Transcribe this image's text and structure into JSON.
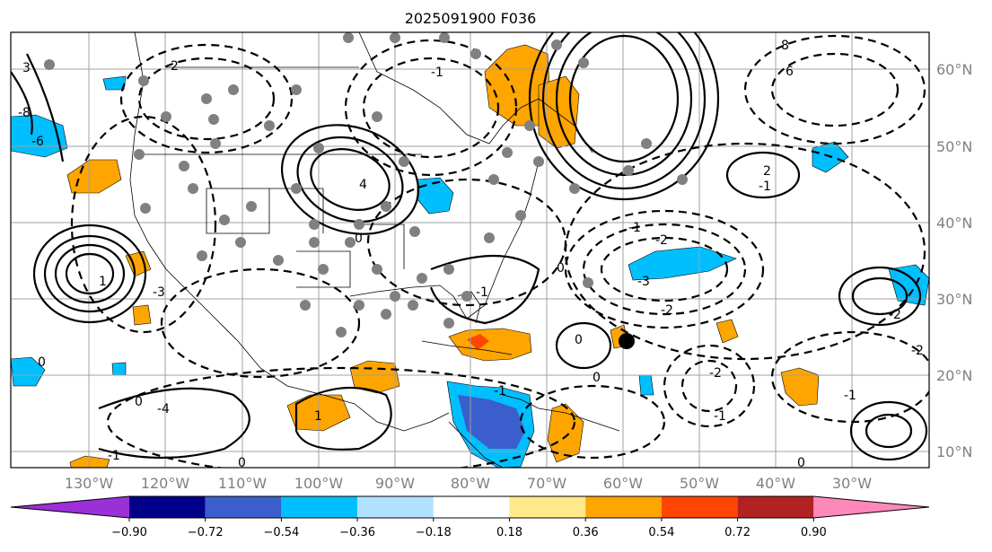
{
  "map": {
    "title": "2025091900 F036",
    "lon_labels": [
      "130°W",
      "120°W",
      "110°W",
      "100°W",
      "90°W",
      "80°W",
      "70°W",
      "60°W",
      "50°W",
      "40°W",
      "30°W"
    ],
    "lat_labels": [
      "60°N",
      "50°N",
      "40°N",
      "30°N",
      "20°N",
      "10°N"
    ],
    "contour_labels": [
      "3",
      "2",
      "1",
      "-1",
      "-3",
      "4",
      "-4",
      "6",
      "8",
      "-8",
      "-6",
      "-2",
      "0",
      "0",
      "0",
      "0",
      "0",
      "0",
      "-1",
      "-1",
      "-2",
      "-3",
      "-2",
      "2",
      "-1",
      "1",
      "-2",
      "-1",
      "-1",
      "0",
      "-2",
      "-1",
      "0",
      "-1"
    ],
    "storm_marker": "black-dot",
    "colorbar": {
      "ticks": [
        "−0.90",
        "−0.72",
        "−0.54",
        "−0.36",
        "−0.18",
        "0.18",
        "0.36",
        "0.54",
        "0.72",
        "0.90"
      ],
      "colors": [
        "#9b30d9",
        "#00008b",
        "#3a5fcd",
        "#00bfff",
        "#b0e2ff",
        "#ffffff",
        "#ffe98a",
        "#ffa500",
        "#ff4500",
        "#b22222",
        "#ff88bb"
      ]
    }
  }
}
